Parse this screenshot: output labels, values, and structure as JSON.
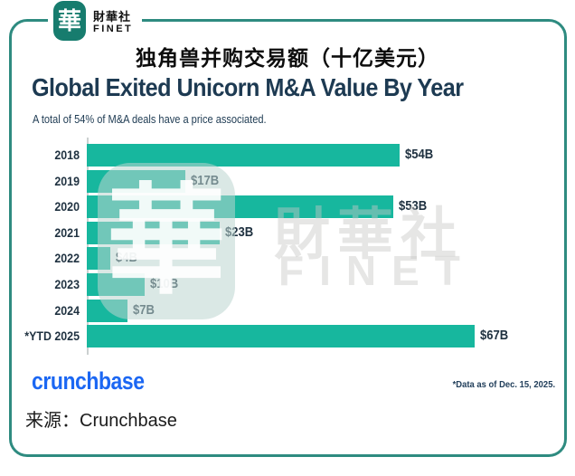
{
  "brand": {
    "logo_glyph": "華",
    "name_zh": "財華社",
    "name_en": "FINET"
  },
  "page_header": {
    "title_zh": "独角兽并购交易额（十亿美元）"
  },
  "chart": {
    "title": "Global Exited Unicorn M&A Value By Year",
    "subtitle": "A total of 54% of M&A deals have a price associated.",
    "provider_logo_text": "crunchbase",
    "footnote": "*Data as of Dec. 15, 2025."
  },
  "chart_data": {
    "type": "bar",
    "orientation": "horizontal",
    "title": "Global Exited Unicorn M&A Value By Year",
    "subtitle": "A total of 54% of M&A deals have a price associated.",
    "categories": [
      "2018",
      "2019",
      "2020",
      "2021",
      "2022",
      "2023",
      "2024",
      "*YTD 2025"
    ],
    "values": [
      54,
      17,
      53,
      23,
      4,
      10,
      7,
      67
    ],
    "value_labels": [
      "$54B",
      "$17B",
      "$53B",
      "$23B",
      "$4B",
      "$10B",
      "$7B",
      "$67B"
    ],
    "unit": "billion USD",
    "xlim": [
      0,
      67
    ],
    "grid": "off",
    "legend": "none",
    "bar_color": "#17b79e"
  },
  "watermark": {
    "seal_glyph": "華",
    "text_zh": "財華社",
    "text_en": "FINET"
  },
  "footer": {
    "source_label": "来源：Crunchbase"
  },
  "colors": {
    "accent_teal": "#17b79e",
    "frame_teal": "#2e8b80",
    "logo_teal": "#177c6e",
    "navy": "#1d3a52",
    "crunchbase_blue": "#1b67f3"
  }
}
